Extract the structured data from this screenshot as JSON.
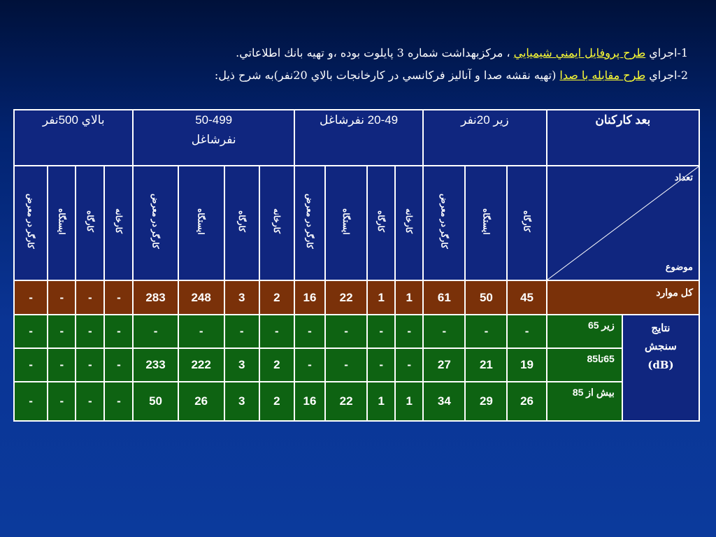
{
  "intro": {
    "line1_prefix": "1-اجراي ",
    "line1_link": "طرح پروفايل ايمني شيميايي",
    "line1_rest": " ، مرکزبهداشت شماره 3 پايلوت بوده ،و تهيه بانك اطلاعاتي.",
    "line2_prefix": "2-اجراي ",
    "line2_link": "طرح مقابله با صدا",
    "line2_rest": " (تهيه نقشه صدا و آناليز فرکانسي در کارخانجات بالاي 20نفر)به شرح ذيل:"
  },
  "table": {
    "corner_header": "بعد کارکنان",
    "corner_top": "تعداد",
    "corner_bottom": "موضوع",
    "groups": [
      {
        "label": "زير 20نفر",
        "subs": [
          "کارگاه",
          "ايستگاه",
          "کارگر در معرض"
        ]
      },
      {
        "label": "20-49 نفرشاغل",
        "subs": [
          "کارخانه",
          "کارگاه",
          "ايستگاه",
          "کارگر در معرض"
        ]
      },
      {
        "label_line1": "50-499",
        "label_line2": "نفرشاغل",
        "subs": [
          "کارخانه",
          "کارگاه",
          "ايستگاه",
          "کارگر در معرض"
        ]
      },
      {
        "label": "بالاي 500نفر",
        "subs": [
          "کارخانه",
          "کارگاه",
          "ايستگاه",
          "کارگر در معرض"
        ]
      }
    ],
    "total_row": {
      "label": "کل موارد",
      "values": [
        "45",
        "50",
        "61",
        "1",
        "1",
        "22",
        "16",
        "2",
        "3",
        "248",
        "283",
        "-",
        "-",
        "-",
        "-"
      ]
    },
    "results_group_line1": "نتايج",
    "results_group_line2": "سنجش",
    "results_group_line3": "(dB)",
    "results": [
      {
        "label": "زير 65",
        "values": [
          "-",
          "-",
          "-",
          "-",
          "-",
          "-",
          "-",
          "-",
          "-",
          "-",
          "-",
          "-",
          "-",
          "-",
          "-"
        ]
      },
      {
        "label": "65تا85",
        "values": [
          "19",
          "21",
          "27",
          "-",
          "-",
          "-",
          "-",
          "2",
          "3",
          "222",
          "233",
          "-",
          "-",
          "-",
          "-"
        ]
      },
      {
        "label": "بيش از 85",
        "values": [
          "26",
          "29",
          "34",
          "1",
          "1",
          "22",
          "16",
          "2",
          "3",
          "26",
          "50",
          "-",
          "-",
          "-",
          "-"
        ]
      }
    ]
  },
  "colors": {
    "background": "#0a3494",
    "header_cells": "#10267f",
    "total_row": "#7a3109",
    "results_rows": "#0e6312",
    "highlight_text": "#ffff33"
  }
}
